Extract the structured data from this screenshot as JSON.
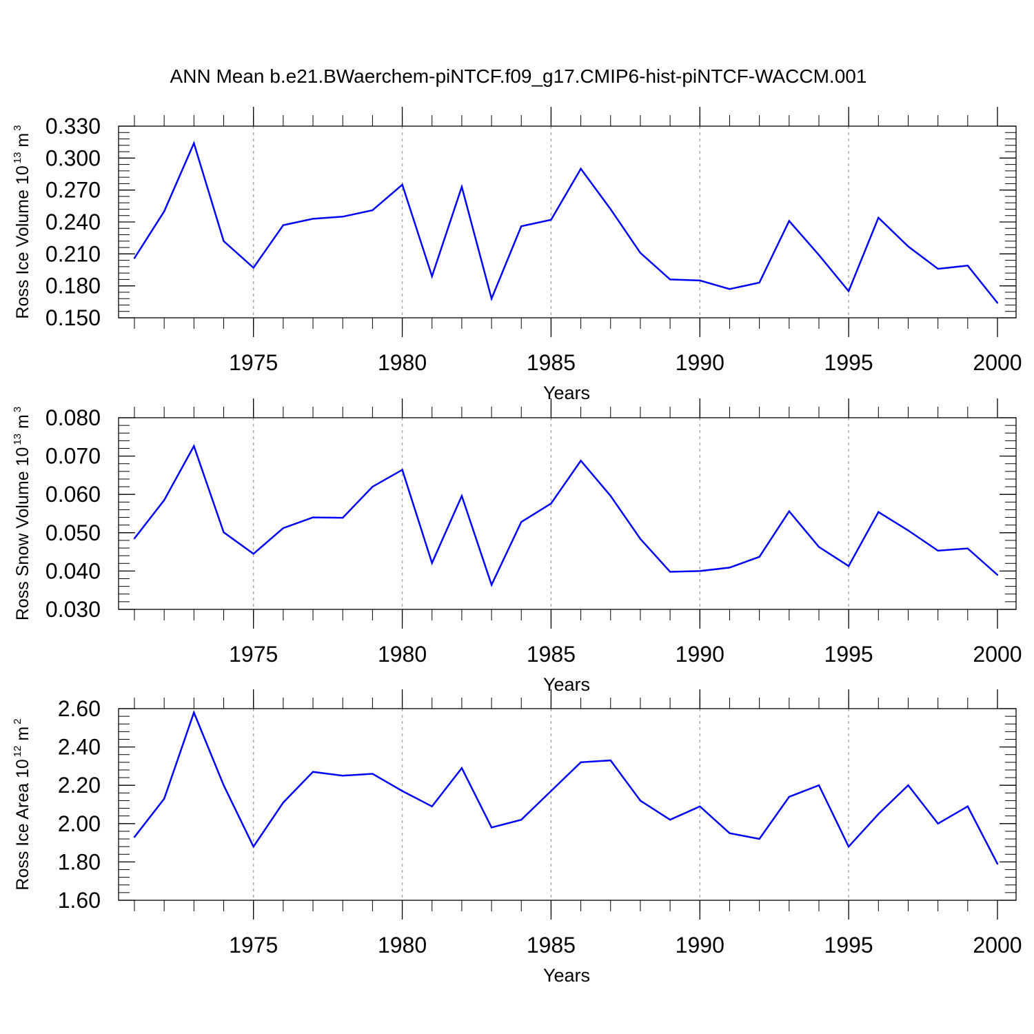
{
  "title": "ANN Mean b.e21.BWaerchem-piNTCF.f09_g17.CMIP6-hist-piNTCF-WACCM.001",
  "chart_data": [
    {
      "type": "line",
      "ylabel": {
        "text": "Ross Ice Volume 10",
        "exponent": "13",
        "unit": "m",
        "unit_exponent": "3"
      },
      "xlabel": "Years",
      "xlim": [
        1971,
        2000
      ],
      "ylim": [
        0.15,
        0.33
      ],
      "yticks": [
        "0.150",
        "0.180",
        "0.210",
        "0.240",
        "0.270",
        "0.300",
        "0.330"
      ],
      "ytick_values": [
        0.15,
        0.18,
        0.21,
        0.24,
        0.27,
        0.3,
        0.33
      ],
      "xticks": [
        "1975",
        "1980",
        "1985",
        "1990",
        "1995",
        "2000"
      ],
      "xtick_values": [
        1975,
        1980,
        1985,
        1990,
        1995,
        2000
      ],
      "grid": "vertical dashed at major x ticks",
      "line_color": "#0000ff",
      "x": [
        1971,
        1972,
        1973,
        1974,
        1975,
        1976,
        1977,
        1978,
        1979,
        1980,
        1981,
        1982,
        1983,
        1984,
        1985,
        1986,
        1987,
        1988,
        1989,
        1990,
        1991,
        1992,
        1993,
        1994,
        1995,
        1996,
        1997,
        1998,
        1999,
        2000
      ],
      "values": [
        0.206,
        0.25,
        0.314,
        0.222,
        0.197,
        0.237,
        0.243,
        0.245,
        0.251,
        0.275,
        0.189,
        0.273,
        0.168,
        0.236,
        0.242,
        0.29,
        0.252,
        0.211,
        0.186,
        0.185,
        0.177,
        0.183,
        0.241,
        0.209,
        0.175,
        0.244,
        0.217,
        0.196,
        0.199,
        0.164
      ]
    },
    {
      "type": "line",
      "ylabel": {
        "text": "Ross Snow Volume 10",
        "exponent": "13",
        "unit": "m",
        "unit_exponent": "3"
      },
      "xlabel": "Years",
      "xlim": [
        1971,
        2000
      ],
      "ylim": [
        0.03,
        0.08
      ],
      "yticks": [
        "0.030",
        "0.040",
        "0.050",
        "0.060",
        "0.070",
        "0.080"
      ],
      "ytick_values": [
        0.03,
        0.04,
        0.05,
        0.06,
        0.07,
        0.08
      ],
      "xticks": [
        "1975",
        "1980",
        "1985",
        "1990",
        "1995",
        "2000"
      ],
      "xtick_values": [
        1975,
        1980,
        1985,
        1990,
        1995,
        2000
      ],
      "grid": "vertical dashed at major x ticks",
      "line_color": "#0000ff",
      "x": [
        1971,
        1972,
        1973,
        1974,
        1975,
        1976,
        1977,
        1978,
        1979,
        1980,
        1981,
        1982,
        1983,
        1984,
        1985,
        1986,
        1987,
        1988,
        1989,
        1990,
        1991,
        1992,
        1993,
        1994,
        1995,
        1996,
        1997,
        1998,
        1999,
        2000
      ],
      "values": [
        0.0485,
        0.0585,
        0.0726,
        0.0501,
        0.0445,
        0.0512,
        0.054,
        0.0539,
        0.062,
        0.0664,
        0.0421,
        0.0596,
        0.0364,
        0.0528,
        0.0576,
        0.0688,
        0.0596,
        0.0484,
        0.0398,
        0.04,
        0.0409,
        0.0437,
        0.0556,
        0.0463,
        0.0413,
        0.0554,
        0.0506,
        0.0453,
        0.0459,
        0.039
      ]
    },
    {
      "type": "line",
      "ylabel": {
        "text": "Ross Ice Area 10",
        "exponent": "12",
        "unit": "m",
        "unit_exponent": "2"
      },
      "xlabel": "Years",
      "xlim": [
        1971,
        2000
      ],
      "ylim": [
        1.6,
        2.6
      ],
      "yticks": [
        "1.60",
        "1.80",
        "2.00",
        "2.20",
        "2.40",
        "2.60"
      ],
      "ytick_values": [
        1.6,
        1.8,
        2.0,
        2.2,
        2.4,
        2.6
      ],
      "xticks": [
        "1975",
        "1980",
        "1985",
        "1990",
        "1995",
        "2000"
      ],
      "xtick_values": [
        1975,
        1980,
        1985,
        1990,
        1995,
        2000
      ],
      "grid": "vertical dashed at major x ticks",
      "line_color": "#0000ff",
      "x": [
        1971,
        1972,
        1973,
        1974,
        1975,
        1976,
        1977,
        1978,
        1979,
        1980,
        1981,
        1982,
        1983,
        1984,
        1985,
        1986,
        1987,
        1988,
        1989,
        1990,
        1991,
        1992,
        1993,
        1994,
        1995,
        1996,
        1997,
        1998,
        1999,
        2000
      ],
      "values": [
        1.93,
        2.13,
        2.58,
        2.2,
        1.88,
        2.11,
        2.27,
        2.25,
        2.26,
        2.17,
        2.09,
        2.29,
        1.98,
        2.02,
        2.17,
        2.32,
        2.33,
        2.12,
        2.02,
        2.09,
        1.95,
        1.92,
        2.14,
        2.2,
        1.88,
        2.05,
        2.2,
        2.0,
        2.09,
        1.79
      ]
    }
  ]
}
